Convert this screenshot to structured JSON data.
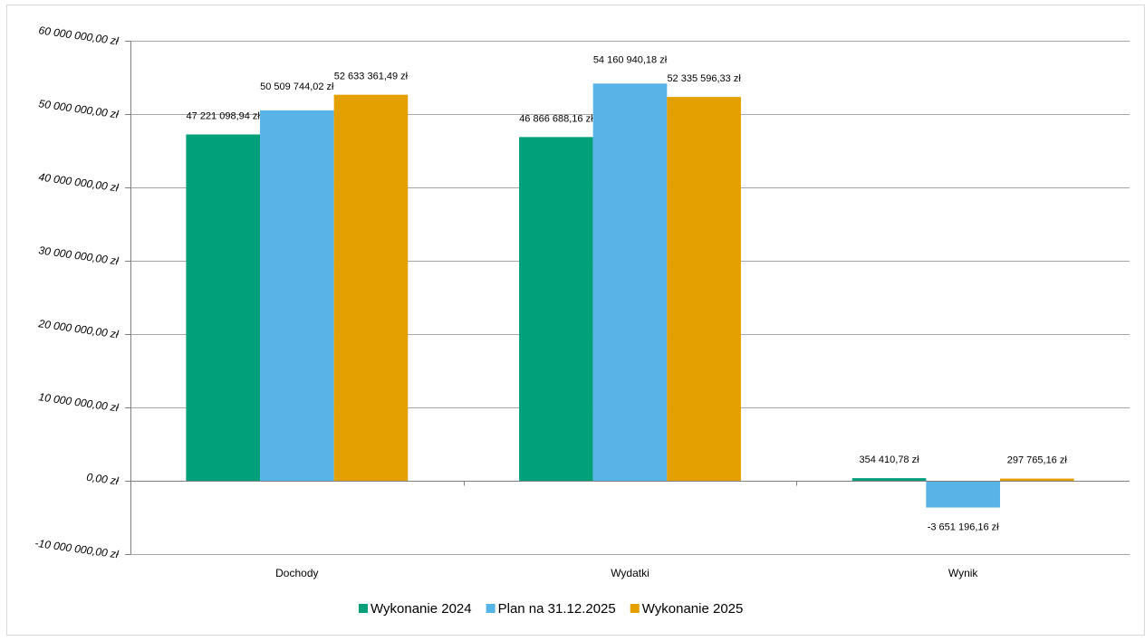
{
  "chart_data": {
    "type": "bar",
    "categories": [
      "Dochody",
      "Wydatki",
      "Wynik"
    ],
    "series": [
      {
        "name": "Wykonanie 2024",
        "color": "#00a07a",
        "values": [
          47221098.94,
          46866688.16,
          354410.78
        ],
        "labels": [
          "47 221 098,94 zł",
          "46 866 688,16 zł",
          "354 410,78 zł"
        ]
      },
      {
        "name": "Plan na 31.12.2025",
        "color": "#58b4e6",
        "values": [
          50509744.02,
          54160940.18,
          -3651196.16
        ],
        "labels": [
          "50 509 744,02 zł",
          "54 160 940,18 zł",
          "-3 651 196,16 zł"
        ]
      },
      {
        "name": "Wykonanie 2025",
        "color": "#e3a000",
        "values": [
          52633361.49,
          52335596.33,
          297765.16
        ],
        "labels": [
          "52 633 361,49 zł",
          "52 335 596,33 zł",
          "297 765,16 zł"
        ]
      }
    ],
    "ylim": [
      -10000000,
      60000000
    ],
    "ytick_values": [
      60000000,
      50000000,
      40000000,
      30000000,
      20000000,
      10000000,
      0,
      -10000000
    ],
    "ytick_labels": [
      "60 000 000,00 zł",
      "50 000 000,00 zł",
      "40 000 000,00 zł",
      "30 000 000,00 zł",
      "20 000 000,00 zł",
      "10 000 000,00 zł",
      "0,00 zł",
      "-10 000 000,00 zł"
    ],
    "grid": true,
    "legend_position": "bottom"
  }
}
